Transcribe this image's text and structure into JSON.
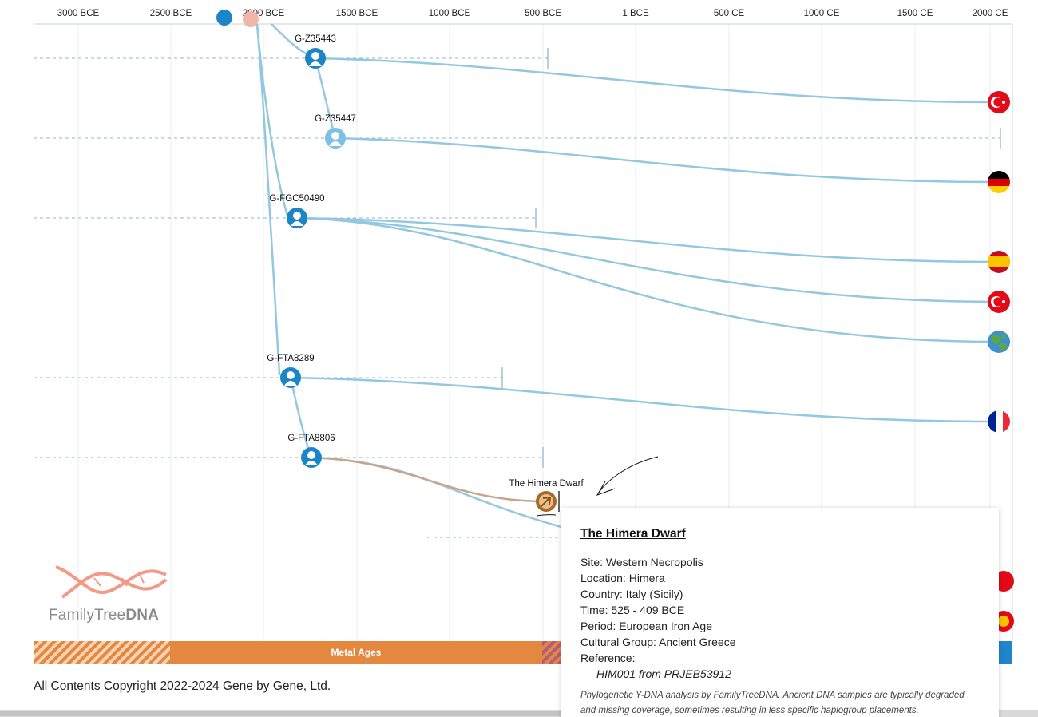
{
  "axis": {
    "ticks": [
      "3000 BCE",
      "2500 BCE",
      "2000 BCE",
      "1500 BCE",
      "1000 BCE",
      "500 BCE",
      "1 BCE",
      "500 CE",
      "1000 CE",
      "1500 CE",
      "2000 CE"
    ]
  },
  "nodes": [
    {
      "label": "G-Z35443",
      "icon": "person-icon"
    },
    {
      "label": "G-Z35447",
      "icon": "person-icon"
    },
    {
      "label": "G-FGC50490",
      "icon": "person-icon"
    },
    {
      "label": "G-FTA8289",
      "icon": "person-icon"
    },
    {
      "label": "G-FTA8806",
      "icon": "person-icon"
    },
    {
      "label": "The Himera Dwarf",
      "icon": "ancient-dna-icon"
    }
  ],
  "flags": [
    {
      "country": "Turkey",
      "icon": "turkey-flag-icon"
    },
    {
      "country": "Germany",
      "icon": "germany-flag-icon"
    },
    {
      "country": "Spain",
      "icon": "spain-flag-icon"
    },
    {
      "country": "Turkey",
      "icon": "turkey-flag-icon"
    },
    {
      "country": "Unknown",
      "icon": "globe-icon"
    },
    {
      "country": "France",
      "icon": "france-flag-icon"
    }
  ],
  "logo": {
    "name_light": "FamilyTree",
    "name_bold": "DNA"
  },
  "eras": {
    "metal_label": "Metal Ages"
  },
  "copyright": "All Contents Copyright 2022-2024 Gene by Gene, Ltd.",
  "popup": {
    "title": "The Himera Dwarf",
    "site": "Site: Western Necropolis",
    "location": "Location: Himera",
    "country": "Country: Italy (Sicily)",
    "time": "Time: 525 - 409 BCE",
    "period": "Period: European Iron Age",
    "cultural_group": "Cultural Group: Ancient Greece",
    "reference_label": "Reference:",
    "reference_value": "HIM001 from PRJEB53912",
    "note": "Phylogenetic Y-DNA analysis by FamilyTreeDNA. Ancient DNA samples are typically degraded and missing coverage, sometimes resulting in less specific haplogroup placements."
  },
  "colors": {
    "branch": "#93c8e0",
    "node": "#1a86c7",
    "node_light": "#7cc0e6",
    "ancient_branch": "#c8a58a",
    "ancient_node": "#a86a2b",
    "era_orange": "#e4883f",
    "era_blue": "#1f86cc"
  }
}
